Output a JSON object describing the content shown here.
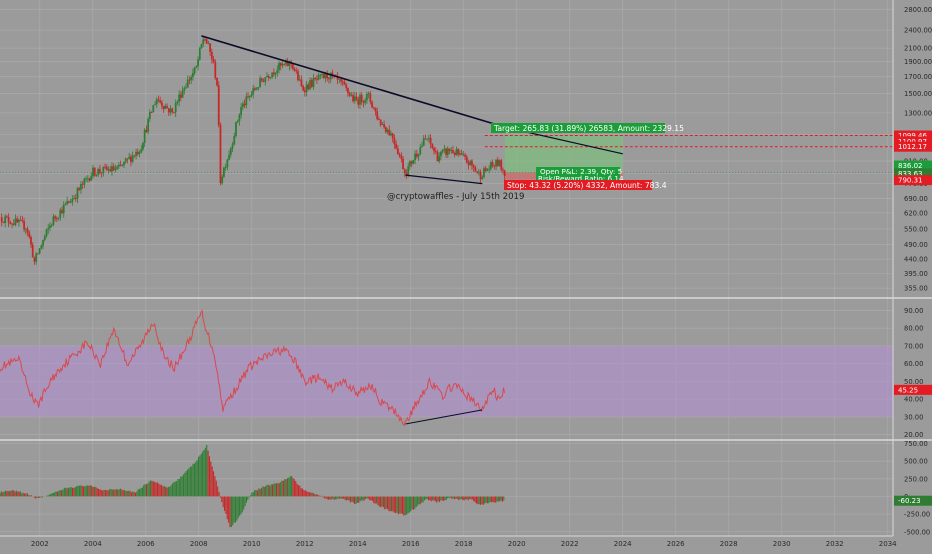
{
  "watermark": "@cryptowaffles - July 15th 2019",
  "colors": {
    "background": "#9b9b9b",
    "grid": "#a9a9a9",
    "up": "#2e7d32",
    "down": "#c62828",
    "trendline": "#0b0b2a",
    "rsi_line": "#d9484d",
    "rsi_band": "#b48fd6",
    "target_box": "#7fbf7f",
    "stop_box": "#d06a6a",
    "label_green": "#1b9e3a",
    "label_red": "#e31b23",
    "panel_separator": "#e6e6e6"
  },
  "position": {
    "target_text": "Target: 265.83 (31.89%) 26583, Amount: 2329.15",
    "open_pnl_text": "Open P&L: 2.39, Qty: 5",
    "rr_text": "Risk/Reward Ratio: 6.14",
    "stop_text": "Stop: 43.32 (5.20%) 4332, Amount: 783.4"
  },
  "chart_data": [
    {
      "type": "candlestick",
      "panel": "price",
      "scale": "log",
      "y_ticks": [
        355,
        395,
        440,
        490,
        550,
        620,
        690,
        770,
        830,
        910,
        1010,
        1110,
        1300,
        1500,
        1700,
        1900,
        2100,
        2400,
        2800
      ],
      "y_tick_labels": [
        "355.00",
        "395.00",
        "440.00",
        "490.00",
        "550.00",
        "620.00",
        "690.00",
        "770.00",
        "830.00",
        "910.00",
        "1010.00",
        "1110.00",
        "1300.00",
        "1500.00",
        "1700.00",
        "1900.00",
        "2100.00",
        "2400.00",
        "2800.00"
      ],
      "ylim": [
        330,
        3000
      ],
      "x_ticks": [
        2002,
        2004,
        2006,
        2008,
        2010,
        2012,
        2014,
        2016,
        2018,
        2020,
        2022,
        2024,
        2026,
        2028,
        2030,
        2032,
        2034
      ],
      "xlim": [
        2000.5,
        2034.2
      ],
      "key_points": [
        {
          "x": 2000.5,
          "y": 600
        },
        {
          "x": 2001.5,
          "y": 560
        },
        {
          "x": 2001.8,
          "y": 430
        },
        {
          "x": 2002.5,
          "y": 590
        },
        {
          "x": 2003.3,
          "y": 700
        },
        {
          "x": 2004.0,
          "y": 840
        },
        {
          "x": 2005.0,
          "y": 860
        },
        {
          "x": 2005.8,
          "y": 1000
        },
        {
          "x": 2006.4,
          "y": 1450
        },
        {
          "x": 2007.0,
          "y": 1300
        },
        {
          "x": 2007.4,
          "y": 1550
        },
        {
          "x": 2007.9,
          "y": 1800
        },
        {
          "x": 2008.2,
          "y": 2300
        },
        {
          "x": 2008.5,
          "y": 1950
        },
        {
          "x": 2008.7,
          "y": 1600
        },
        {
          "x": 2008.8,
          "y": 780
        },
        {
          "x": 2009.2,
          "y": 1000
        },
        {
          "x": 2009.6,
          "y": 1350
        },
        {
          "x": 2010.0,
          "y": 1500
        },
        {
          "x": 2010.5,
          "y": 1700
        },
        {
          "x": 2011.0,
          "y": 1820
        },
        {
          "x": 2011.5,
          "y": 1880
        },
        {
          "x": 2011.9,
          "y": 1550
        },
        {
          "x": 2012.4,
          "y": 1650
        },
        {
          "x": 2012.9,
          "y": 1720
        },
        {
          "x": 2013.4,
          "y": 1600
        },
        {
          "x": 2013.9,
          "y": 1420
        },
        {
          "x": 2014.4,
          "y": 1470
        },
        {
          "x": 2014.8,
          "y": 1230
        },
        {
          "x": 2015.3,
          "y": 1100
        },
        {
          "x": 2015.8,
          "y": 830
        },
        {
          "x": 2016.2,
          "y": 960
        },
        {
          "x": 2016.6,
          "y": 1080
        },
        {
          "x": 2017.0,
          "y": 940
        },
        {
          "x": 2017.5,
          "y": 990
        },
        {
          "x": 2017.9,
          "y": 940
        },
        {
          "x": 2018.3,
          "y": 880
        },
        {
          "x": 2018.6,
          "y": 820
        },
        {
          "x": 2019.0,
          "y": 870
        },
        {
          "x": 2019.3,
          "y": 900
        },
        {
          "x": 2019.55,
          "y": 836
        }
      ],
      "last_price": "836.02",
      "last_price_secondary": "833.63",
      "price_levels": [
        {
          "label": "1099.46",
          "value": 1099.46,
          "style": "dashed",
          "color": "#e31b23"
        },
        {
          "label": "1100.97",
          "value": 1053,
          "style": "none",
          "color": "#e31b23"
        },
        {
          "label": "1012.17",
          "value": 1012.17,
          "style": "dashed",
          "color": "#e31b23"
        },
        {
          "label": "790.31",
          "value": 790.31,
          "style": "none",
          "color": "#e31b23"
        }
      ],
      "target_zone": {
        "x0": 2019.55,
        "x1": 2024.0,
        "y0": 836,
        "y1": 1099.46
      },
      "stop_zone": {
        "x0": 2019.55,
        "x1": 2024.0,
        "y0": 793,
        "y1": 836
      },
      "trendlines": [
        {
          "x0": 2008.1,
          "y0": 2300,
          "x1": 2019.55,
          "y1": 1170
        },
        {
          "x0": 2019.55,
          "y0": 1170,
          "x1": 2024.0,
          "y1": 960
        },
        {
          "x0": 2015.8,
          "y0": 820,
          "x1": 2018.7,
          "y1": 770
        }
      ]
    },
    {
      "type": "line",
      "panel": "rsi",
      "y_ticks": [
        20,
        30,
        40,
        50,
        60,
        70,
        80,
        90
      ],
      "y_tick_labels": [
        "20.00",
        "30.00",
        "40.00",
        "50.00",
        "60.00",
        "70.00",
        "80.00",
        "90.00"
      ],
      "ylim": [
        17,
        97
      ],
      "band": [
        30,
        70
      ],
      "last_value": "45.25",
      "key_points": [
        {
          "x": 2000.5,
          "y": 58
        },
        {
          "x": 2001.2,
          "y": 62
        },
        {
          "x": 2001.6,
          "y": 45
        },
        {
          "x": 2001.9,
          "y": 36
        },
        {
          "x": 2002.4,
          "y": 50
        },
        {
          "x": 2002.8,
          "y": 58
        },
        {
          "x": 2003.3,
          "y": 65
        },
        {
          "x": 2003.8,
          "y": 72
        },
        {
          "x": 2004.3,
          "y": 60
        },
        {
          "x": 2004.8,
          "y": 80
        },
        {
          "x": 2005.3,
          "y": 60
        },
        {
          "x": 2005.8,
          "y": 70
        },
        {
          "x": 2006.3,
          "y": 84
        },
        {
          "x": 2006.7,
          "y": 63
        },
        {
          "x": 2007.1,
          "y": 58
        },
        {
          "x": 2007.6,
          "y": 72
        },
        {
          "x": 2008.1,
          "y": 89
        },
        {
          "x": 2008.4,
          "y": 74
        },
        {
          "x": 2008.6,
          "y": 65
        },
        {
          "x": 2008.9,
          "y": 35
        },
        {
          "x": 2009.4,
          "y": 46
        },
        {
          "x": 2009.9,
          "y": 58
        },
        {
          "x": 2010.3,
          "y": 62
        },
        {
          "x": 2010.8,
          "y": 66
        },
        {
          "x": 2011.2,
          "y": 68
        },
        {
          "x": 2011.6,
          "y": 62
        },
        {
          "x": 2012.0,
          "y": 50
        },
        {
          "x": 2012.5,
          "y": 52
        },
        {
          "x": 2013.0,
          "y": 46
        },
        {
          "x": 2013.5,
          "y": 50
        },
        {
          "x": 2014.0,
          "y": 43
        },
        {
          "x": 2014.5,
          "y": 48
        },
        {
          "x": 2014.9,
          "y": 38
        },
        {
          "x": 2015.4,
          "y": 33
        },
        {
          "x": 2015.8,
          "y": 26
        },
        {
          "x": 2016.3,
          "y": 40
        },
        {
          "x": 2016.7,
          "y": 50
        },
        {
          "x": 2017.2,
          "y": 42
        },
        {
          "x": 2017.6,
          "y": 48
        },
        {
          "x": 2018.0,
          "y": 44
        },
        {
          "x": 2018.4,
          "y": 38
        },
        {
          "x": 2018.7,
          "y": 34
        },
        {
          "x": 2019.1,
          "y": 46
        },
        {
          "x": 2019.3,
          "y": 40
        },
        {
          "x": 2019.55,
          "y": 45
        }
      ],
      "divergence_line": {
        "x0": 2015.8,
        "y0": 26,
        "x1": 2018.7,
        "y1": 34
      }
    },
    {
      "type": "bar",
      "panel": "macd_histogram",
      "y_ticks": [
        -500,
        -250,
        0,
        250,
        500,
        750
      ],
      "y_tick_labels": [
        "-500.00",
        "-250.00",
        "0",
        "250.00",
        "500.00",
        "750.00"
      ],
      "ylim": [
        -560,
        800
      ],
      "last_value": "-60.23",
      "key_points": [
        {
          "x": 2000.5,
          "y": 60
        },
        {
          "x": 2001.0,
          "y": 80
        },
        {
          "x": 2001.5,
          "y": 40
        },
        {
          "x": 2001.9,
          "y": -30
        },
        {
          "x": 2002.5,
          "y": 40
        },
        {
          "x": 2003.0,
          "y": 120
        },
        {
          "x": 2003.8,
          "y": 160
        },
        {
          "x": 2004.4,
          "y": 90
        },
        {
          "x": 2005.0,
          "y": 110
        },
        {
          "x": 2005.6,
          "y": 60
        },
        {
          "x": 2006.2,
          "y": 230
        },
        {
          "x": 2006.8,
          "y": 120
        },
        {
          "x": 2007.4,
          "y": 300
        },
        {
          "x": 2007.9,
          "y": 500
        },
        {
          "x": 2008.3,
          "y": 720
        },
        {
          "x": 2008.6,
          "y": 300
        },
        {
          "x": 2008.9,
          "y": -120
        },
        {
          "x": 2009.2,
          "y": -450
        },
        {
          "x": 2009.6,
          "y": -250
        },
        {
          "x": 2010.0,
          "y": 60
        },
        {
          "x": 2010.5,
          "y": 150
        },
        {
          "x": 2011.0,
          "y": 190
        },
        {
          "x": 2011.5,
          "y": 290
        },
        {
          "x": 2011.9,
          "y": 100
        },
        {
          "x": 2012.4,
          "y": 40
        },
        {
          "x": 2012.9,
          "y": -40
        },
        {
          "x": 2013.4,
          "y": -30
        },
        {
          "x": 2013.9,
          "y": -100
        },
        {
          "x": 2014.4,
          "y": -30
        },
        {
          "x": 2014.8,
          "y": -130
        },
        {
          "x": 2015.3,
          "y": -220
        },
        {
          "x": 2015.8,
          "y": -270
        },
        {
          "x": 2016.2,
          "y": -150
        },
        {
          "x": 2016.6,
          "y": -40
        },
        {
          "x": 2017.0,
          "y": -80
        },
        {
          "x": 2017.5,
          "y": -20
        },
        {
          "x": 2017.9,
          "y": -50
        },
        {
          "x": 2018.3,
          "y": -40
        },
        {
          "x": 2018.6,
          "y": -120
        },
        {
          "x": 2019.0,
          "y": -90
        },
        {
          "x": 2019.55,
          "y": -60
        }
      ]
    }
  ]
}
